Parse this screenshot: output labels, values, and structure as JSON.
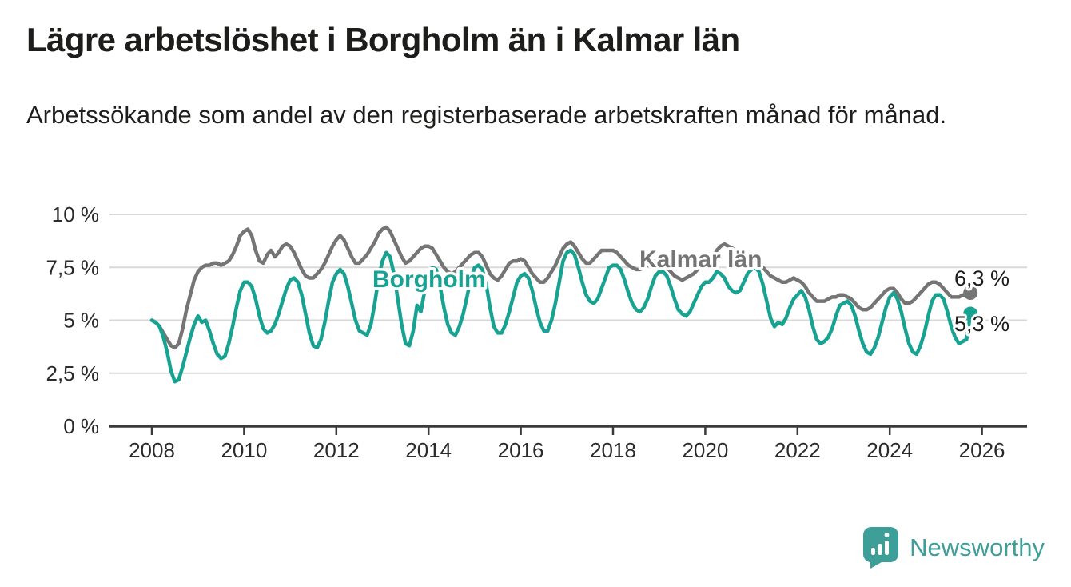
{
  "header": {
    "title": "Lägre arbetslöshet i Borgholm än i Kalmar län",
    "subtitle": "Arbetssökande som andel av den registerbaserade arbetskraften månad för månad."
  },
  "chart_data": {
    "type": "line",
    "title": "Lägre arbetslöshet i Borgholm än i Kalmar län",
    "xlabel": "",
    "ylabel": "",
    "frequency": "monthly",
    "start_month": "2008-01",
    "end_month": "2025-10",
    "ylim": [
      0,
      10
    ],
    "grid": true,
    "y_ticks": [
      {
        "value": 10,
        "label": "10 %"
      },
      {
        "value": 7.5,
        "label": "7,5 %"
      },
      {
        "value": 5,
        "label": "5 %"
      },
      {
        "value": 2.5,
        "label": "2,5 %"
      },
      {
        "value": 0,
        "label": "0 %"
      }
    ],
    "x_tick_years": [
      2008,
      2010,
      2012,
      2014,
      2016,
      2018,
      2020,
      2022,
      2024,
      2026
    ],
    "x_tick_labels": [
      "2008",
      "2010",
      "2012",
      "2014",
      "2016",
      "2018",
      "2020",
      "2022",
      "2024",
      "2026"
    ],
    "series": [
      {
        "name": "Kalmar län",
        "slug": "kalmar-lan",
        "color": "#757575",
        "end_label": "6,3 %",
        "last_value": 6.3,
        "values": [
          5.0,
          4.9,
          4.7,
          4.4,
          4.1,
          3.8,
          3.7,
          3.9,
          4.6,
          5.5,
          6.2,
          6.9,
          7.3,
          7.5,
          7.6,
          7.6,
          7.7,
          7.7,
          7.6,
          7.7,
          7.8,
          8.1,
          8.5,
          9.0,
          9.2,
          9.3,
          9.0,
          8.3,
          7.8,
          7.7,
          8.1,
          8.3,
          8.0,
          8.2,
          8.5,
          8.6,
          8.5,
          8.2,
          7.8,
          7.4,
          7.1,
          7.0,
          7.0,
          7.2,
          7.4,
          7.7,
          8.1,
          8.5,
          8.8,
          9.0,
          8.8,
          8.4,
          8.0,
          7.7,
          7.7,
          7.9,
          8.1,
          8.4,
          8.7,
          9.1,
          9.3,
          9.4,
          9.2,
          8.8,
          8.4,
          8.0,
          7.7,
          7.8,
          8.0,
          8.2,
          8.4,
          8.5,
          8.5,
          8.4,
          8.1,
          7.8,
          7.5,
          7.3,
          7.2,
          7.3,
          7.5,
          7.7,
          7.9,
          8.1,
          8.2,
          8.2,
          8.0,
          7.6,
          7.2,
          7.0,
          6.9,
          7.1,
          7.4,
          7.7,
          7.8,
          7.8,
          7.9,
          7.8,
          7.5,
          7.2,
          7.0,
          6.8,
          6.8,
          7.0,
          7.3,
          7.6,
          8.0,
          8.4,
          8.6,
          8.7,
          8.5,
          8.2,
          7.9,
          7.7,
          7.7,
          7.9,
          8.1,
          8.3,
          8.3,
          8.3,
          8.3,
          8.2,
          8.0,
          7.8,
          7.6,
          7.5,
          7.4,
          7.4,
          7.5,
          7.6,
          7.7,
          7.8,
          7.8,
          7.7,
          7.5,
          7.3,
          7.1,
          7.0,
          6.9,
          7.0,
          7.1,
          7.2,
          7.4,
          7.6,
          7.7,
          7.7,
          7.9,
          8.3,
          8.5,
          8.6,
          8.5,
          8.4,
          8.3,
          8.1,
          8.0,
          8.0,
          8.0,
          7.9,
          7.7,
          7.5,
          7.3,
          7.1,
          7.0,
          6.9,
          6.8,
          6.8,
          6.9,
          7.0,
          6.9,
          6.8,
          6.6,
          6.3,
          6.1,
          5.9,
          5.9,
          5.9,
          6.0,
          6.1,
          6.1,
          6.2,
          6.2,
          6.1,
          6.0,
          5.8,
          5.6,
          5.5,
          5.5,
          5.6,
          5.8,
          6.0,
          6.2,
          6.4,
          6.5,
          6.5,
          6.3,
          6.0,
          5.8,
          5.8,
          5.9,
          6.1,
          6.3,
          6.5,
          6.7,
          6.8,
          6.8,
          6.7,
          6.5,
          6.3,
          6.1,
          6.1,
          6.1,
          6.2,
          6.2,
          6.3
        ]
      },
      {
        "name": "Borgholm",
        "slug": "borgholm",
        "color": "#17a292",
        "end_label": "5,3 %",
        "last_value": 5.3,
        "values": [
          5.0,
          4.9,
          4.7,
          4.2,
          3.5,
          2.6,
          2.1,
          2.2,
          2.8,
          3.5,
          4.2,
          4.8,
          5.2,
          4.9,
          5.0,
          4.5,
          3.9,
          3.4,
          3.2,
          3.3,
          3.9,
          4.7,
          5.6,
          6.4,
          6.8,
          6.8,
          6.6,
          6.0,
          5.2,
          4.6,
          4.4,
          4.5,
          4.8,
          5.3,
          5.9,
          6.5,
          6.9,
          7.0,
          6.8,
          6.2,
          5.3,
          4.4,
          3.8,
          3.7,
          4.1,
          4.9,
          5.9,
          6.8,
          7.2,
          7.4,
          7.2,
          6.6,
          5.8,
          5.0,
          4.5,
          4.4,
          4.3,
          4.8,
          5.8,
          7.0,
          7.8,
          8.2,
          8.0,
          7.2,
          6.0,
          4.8,
          3.9,
          3.8,
          4.5,
          5.7,
          5.4,
          6.4,
          7.1,
          7.5,
          7.4,
          6.6,
          5.6,
          4.8,
          4.4,
          4.3,
          4.7,
          5.3,
          6.1,
          7.0,
          7.5,
          7.6,
          7.4,
          6.7,
          5.6,
          4.7,
          4.4,
          4.4,
          4.8,
          5.4,
          6.1,
          6.8,
          7.1,
          7.2,
          7.0,
          6.4,
          5.6,
          4.9,
          4.5,
          4.5,
          5.0,
          5.8,
          6.8,
          7.8,
          8.2,
          8.3,
          8.1,
          7.5,
          6.8,
          6.2,
          5.9,
          5.8,
          6.0,
          6.5,
          7.0,
          7.5,
          7.6,
          7.6,
          7.4,
          6.9,
          6.3,
          5.8,
          5.5,
          5.4,
          5.6,
          6.0,
          6.6,
          7.1,
          7.3,
          7.3,
          7.1,
          6.6,
          6.0,
          5.5,
          5.3,
          5.2,
          5.4,
          5.8,
          6.2,
          6.6,
          6.8,
          6.8,
          7.0,
          7.3,
          7.2,
          7.0,
          6.6,
          6.4,
          6.3,
          6.4,
          6.8,
          7.2,
          7.4,
          7.5,
          7.3,
          6.7,
          5.9,
          5.1,
          4.7,
          4.9,
          4.8,
          5.1,
          5.6,
          6.0,
          6.2,
          6.4,
          6.1,
          5.5,
          4.7,
          4.1,
          3.9,
          4.0,
          4.2,
          4.6,
          5.2,
          5.7,
          5.8,
          5.9,
          5.7,
          5.2,
          4.5,
          3.9,
          3.5,
          3.4,
          3.7,
          4.2,
          4.9,
          5.6,
          6.1,
          6.3,
          6.0,
          5.4,
          4.6,
          3.9,
          3.5,
          3.4,
          3.8,
          4.4,
          5.2,
          5.9,
          6.2,
          6.2,
          6.0,
          5.4,
          4.7,
          4.2,
          3.9,
          4.0,
          4.1,
          5.3
        ]
      }
    ],
    "legend_position": "inline-labels",
    "colors": {
      "grid": "#d9d9d9",
      "axis": "#3a3a3a",
      "tick_text": "#2b2b2b",
      "annotation_text": "#1d1d1b",
      "brand": "#3e9e98"
    }
  },
  "footer": {
    "brand": "Newsworthy"
  }
}
